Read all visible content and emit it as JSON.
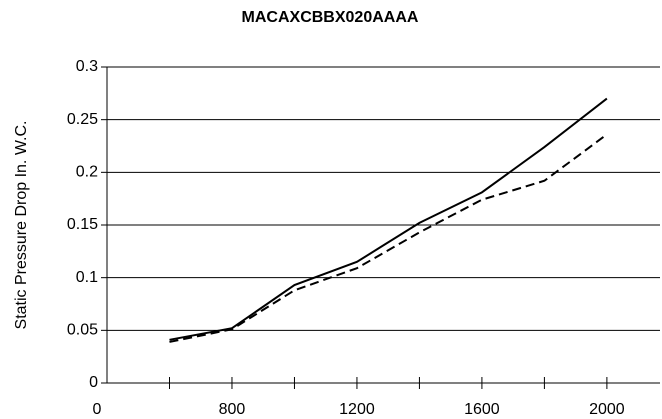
{
  "chart_data": {
    "type": "line",
    "title": "MACAXCBBX020AAAA",
    "y_label": "Static Pressure Drop In. W.C.",
    "x_origin_label": "0",
    "x": [
      600,
      800,
      1000,
      1200,
      1400,
      1600,
      1800,
      2000
    ],
    "series": [
      {
        "color": "#000000",
        "dashed": false,
        "values": [
          0.041,
          0.052,
          0.093,
          0.115,
          0.152,
          0.181,
          0.224,
          0.27
        ]
      },
      {
        "color": "#000000",
        "dashed": true,
        "values": [
          0.039,
          0.051,
          0.088,
          0.109,
          0.143,
          0.174,
          0.192,
          0.236
        ]
      }
    ],
    "xlim": [
      400,
      2170
    ],
    "xticks": [
      800,
      1200,
      1600,
      2000
    ],
    "xminor_ticks": [
      600,
      1000,
      1400,
      1800
    ],
    "ylim": [
      0,
      0.3
    ],
    "yticks": [
      0,
      0.05,
      0.1,
      0.15,
      0.2,
      0.25,
      0.3
    ],
    "grid": true
  }
}
